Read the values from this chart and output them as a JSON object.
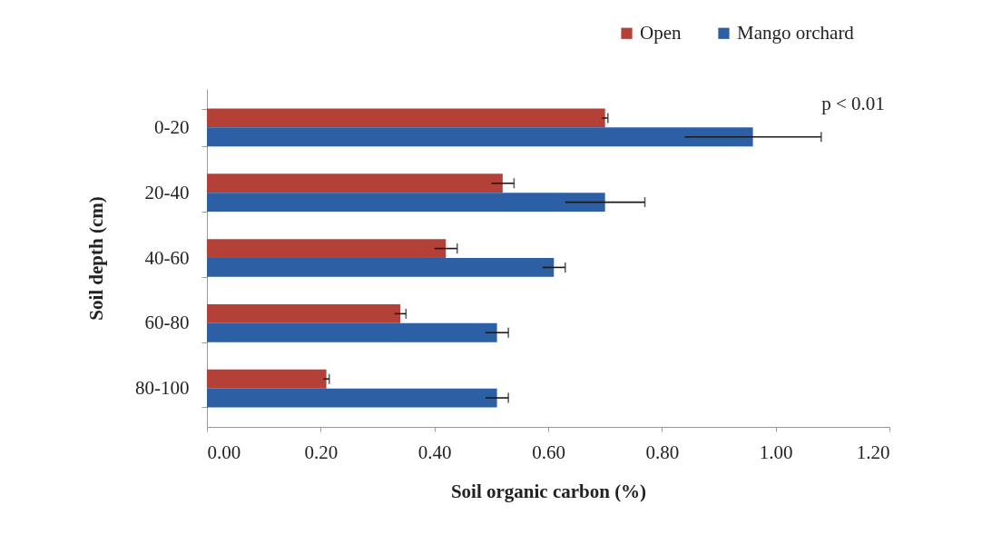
{
  "chart_data": {
    "type": "bar",
    "orientation": "horizontal",
    "xlabel": "Soil organic carbon (%)",
    "ylabel": "Soil depth (cm)",
    "categories": [
      "0-20",
      "20-40",
      "40-60",
      "60-80",
      "80-100"
    ],
    "series": [
      {
        "name": "Open",
        "color": "#b44137",
        "values": [
          0.7,
          0.52,
          0.42,
          0.34,
          0.21
        ],
        "errors": [
          0.005,
          0.02,
          0.02,
          0.01,
          0.005
        ]
      },
      {
        "name": "Mango orchard",
        "color": "#2d5fa5",
        "values": [
          0.96,
          0.7,
          0.61,
          0.51,
          0.51
        ],
        "errors": [
          0.12,
          0.07,
          0.02,
          0.02,
          0.02
        ]
      }
    ],
    "xlim": [
      0,
      1.2
    ],
    "xticks": [
      {
        "value": 0,
        "label": "0.00"
      },
      {
        "value": 0.2,
        "label": "0.20"
      },
      {
        "value": 0.4,
        "label": "0.40"
      },
      {
        "value": 0.6,
        "label": "0.60"
      },
      {
        "value": 0.8,
        "label": "0.80"
      },
      {
        "value": 1.0,
        "label": "1.00"
      },
      {
        "value": 1.2,
        "label": "1.20"
      }
    ],
    "grid": false,
    "legend": "top right",
    "annotations": [
      "p < 0.01"
    ]
  }
}
